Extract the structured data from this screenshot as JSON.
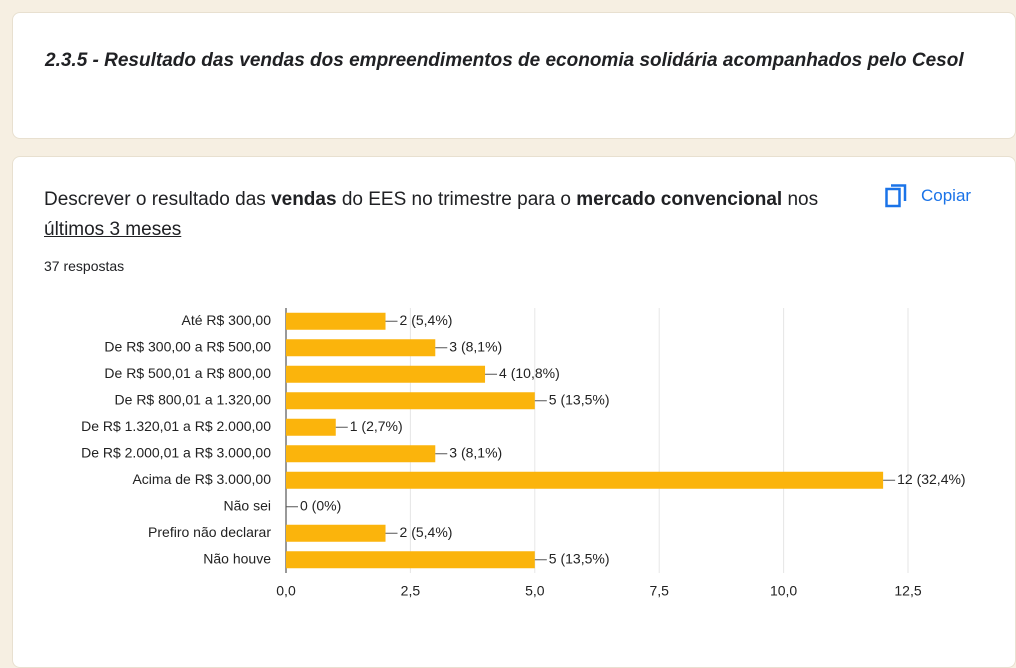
{
  "header": {
    "title": "2.3.5 - Resultado das vendas  dos empreendimentos de economia solidária acompanhados pelo Cesol"
  },
  "card": {
    "question": [
      "Descrever o resultado das ",
      "vendas",
      " do EES no trimestre para o ",
      "mercado convencional",
      " nos ",
      "últimos 3 meses"
    ],
    "copy": "Copiar",
    "responses": "37 respostas"
  },
  "chart_data": {
    "type": "hbar",
    "categories": [
      "Até R$ 300,00",
      "De R$ 300,00 a R$ 500,00",
      "De R$ 500,01 a R$ 800,00",
      "De R$ 800,01 a 1.320,00",
      "De R$ 1.320,01 a R$ 2.000,00",
      "De R$ 2.000,01 a R$ 3.000,00",
      "Acima de R$ 3.000,00",
      "Não sei",
      "Prefiro não declarar",
      "Não houve"
    ],
    "values": [
      2,
      3,
      4,
      5,
      1,
      3,
      12,
      0,
      2,
      5
    ],
    "value_labels": [
      "2 (5,4%)",
      "3 (8,1%)",
      "4 (10,8%)",
      "5 (13,5%)",
      "1 (2,7%)",
      "3 (8,1%)",
      "12 (32,4%)",
      "0 (0%)",
      "2 (5,4%)",
      "5 (13,5%)"
    ],
    "color": "#fbb40c",
    "xlim": [
      0,
      12.5
    ],
    "xticks": [
      {
        "value": 0,
        "label": "0,0"
      },
      {
        "value": 2.5,
        "label": "2,5"
      },
      {
        "value": 5,
        "label": "5,0"
      },
      {
        "value": 7.5,
        "label": "7,5"
      },
      {
        "value": 10,
        "label": "10,0"
      },
      {
        "value": 12.5,
        "label": "12,5"
      }
    ],
    "grid": true
  }
}
